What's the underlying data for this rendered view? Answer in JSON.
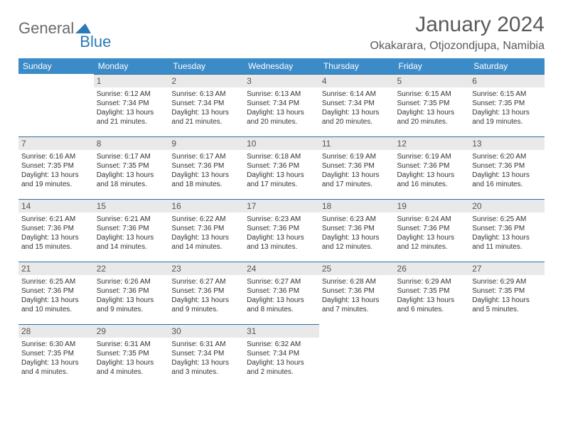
{
  "brand": {
    "part1": "General",
    "part2": "Blue"
  },
  "title": "January 2024",
  "location": "Okakarara, Otjozondjupa, Namibia",
  "colors": {
    "header_bg": "#3b8bc8",
    "header_text": "#ffffff",
    "daynum_bg": "#e9e9e9",
    "daynum_border": "#2a6fa5",
    "body_text": "#333333",
    "brand_grey": "#6b6b6b",
    "brand_blue": "#2a7ab8"
  },
  "weekdays": [
    "Sunday",
    "Monday",
    "Tuesday",
    "Wednesday",
    "Thursday",
    "Friday",
    "Saturday"
  ],
  "weeks": [
    [
      null,
      {
        "n": "1",
        "sr": "Sunrise: 6:12 AM",
        "ss": "Sunset: 7:34 PM",
        "d1": "Daylight: 13 hours",
        "d2": "and 21 minutes."
      },
      {
        "n": "2",
        "sr": "Sunrise: 6:13 AM",
        "ss": "Sunset: 7:34 PM",
        "d1": "Daylight: 13 hours",
        "d2": "and 21 minutes."
      },
      {
        "n": "3",
        "sr": "Sunrise: 6:13 AM",
        "ss": "Sunset: 7:34 PM",
        "d1": "Daylight: 13 hours",
        "d2": "and 20 minutes."
      },
      {
        "n": "4",
        "sr": "Sunrise: 6:14 AM",
        "ss": "Sunset: 7:34 PM",
        "d1": "Daylight: 13 hours",
        "d2": "and 20 minutes."
      },
      {
        "n": "5",
        "sr": "Sunrise: 6:15 AM",
        "ss": "Sunset: 7:35 PM",
        "d1": "Daylight: 13 hours",
        "d2": "and 20 minutes."
      },
      {
        "n": "6",
        "sr": "Sunrise: 6:15 AM",
        "ss": "Sunset: 7:35 PM",
        "d1": "Daylight: 13 hours",
        "d2": "and 19 minutes."
      }
    ],
    [
      {
        "n": "7",
        "sr": "Sunrise: 6:16 AM",
        "ss": "Sunset: 7:35 PM",
        "d1": "Daylight: 13 hours",
        "d2": "and 19 minutes."
      },
      {
        "n": "8",
        "sr": "Sunrise: 6:17 AM",
        "ss": "Sunset: 7:35 PM",
        "d1": "Daylight: 13 hours",
        "d2": "and 18 minutes."
      },
      {
        "n": "9",
        "sr": "Sunrise: 6:17 AM",
        "ss": "Sunset: 7:36 PM",
        "d1": "Daylight: 13 hours",
        "d2": "and 18 minutes."
      },
      {
        "n": "10",
        "sr": "Sunrise: 6:18 AM",
        "ss": "Sunset: 7:36 PM",
        "d1": "Daylight: 13 hours",
        "d2": "and 17 minutes."
      },
      {
        "n": "11",
        "sr": "Sunrise: 6:19 AM",
        "ss": "Sunset: 7:36 PM",
        "d1": "Daylight: 13 hours",
        "d2": "and 17 minutes."
      },
      {
        "n": "12",
        "sr": "Sunrise: 6:19 AM",
        "ss": "Sunset: 7:36 PM",
        "d1": "Daylight: 13 hours",
        "d2": "and 16 minutes."
      },
      {
        "n": "13",
        "sr": "Sunrise: 6:20 AM",
        "ss": "Sunset: 7:36 PM",
        "d1": "Daylight: 13 hours",
        "d2": "and 16 minutes."
      }
    ],
    [
      {
        "n": "14",
        "sr": "Sunrise: 6:21 AM",
        "ss": "Sunset: 7:36 PM",
        "d1": "Daylight: 13 hours",
        "d2": "and 15 minutes."
      },
      {
        "n": "15",
        "sr": "Sunrise: 6:21 AM",
        "ss": "Sunset: 7:36 PM",
        "d1": "Daylight: 13 hours",
        "d2": "and 14 minutes."
      },
      {
        "n": "16",
        "sr": "Sunrise: 6:22 AM",
        "ss": "Sunset: 7:36 PM",
        "d1": "Daylight: 13 hours",
        "d2": "and 14 minutes."
      },
      {
        "n": "17",
        "sr": "Sunrise: 6:23 AM",
        "ss": "Sunset: 7:36 PM",
        "d1": "Daylight: 13 hours",
        "d2": "and 13 minutes."
      },
      {
        "n": "18",
        "sr": "Sunrise: 6:23 AM",
        "ss": "Sunset: 7:36 PM",
        "d1": "Daylight: 13 hours",
        "d2": "and 12 minutes."
      },
      {
        "n": "19",
        "sr": "Sunrise: 6:24 AM",
        "ss": "Sunset: 7:36 PM",
        "d1": "Daylight: 13 hours",
        "d2": "and 12 minutes."
      },
      {
        "n": "20",
        "sr": "Sunrise: 6:25 AM",
        "ss": "Sunset: 7:36 PM",
        "d1": "Daylight: 13 hours",
        "d2": "and 11 minutes."
      }
    ],
    [
      {
        "n": "21",
        "sr": "Sunrise: 6:25 AM",
        "ss": "Sunset: 7:36 PM",
        "d1": "Daylight: 13 hours",
        "d2": "and 10 minutes."
      },
      {
        "n": "22",
        "sr": "Sunrise: 6:26 AM",
        "ss": "Sunset: 7:36 PM",
        "d1": "Daylight: 13 hours",
        "d2": "and 9 minutes."
      },
      {
        "n": "23",
        "sr": "Sunrise: 6:27 AM",
        "ss": "Sunset: 7:36 PM",
        "d1": "Daylight: 13 hours",
        "d2": "and 9 minutes."
      },
      {
        "n": "24",
        "sr": "Sunrise: 6:27 AM",
        "ss": "Sunset: 7:36 PM",
        "d1": "Daylight: 13 hours",
        "d2": "and 8 minutes."
      },
      {
        "n": "25",
        "sr": "Sunrise: 6:28 AM",
        "ss": "Sunset: 7:36 PM",
        "d1": "Daylight: 13 hours",
        "d2": "and 7 minutes."
      },
      {
        "n": "26",
        "sr": "Sunrise: 6:29 AM",
        "ss": "Sunset: 7:35 PM",
        "d1": "Daylight: 13 hours",
        "d2": "and 6 minutes."
      },
      {
        "n": "27",
        "sr": "Sunrise: 6:29 AM",
        "ss": "Sunset: 7:35 PM",
        "d1": "Daylight: 13 hours",
        "d2": "and 5 minutes."
      }
    ],
    [
      {
        "n": "28",
        "sr": "Sunrise: 6:30 AM",
        "ss": "Sunset: 7:35 PM",
        "d1": "Daylight: 13 hours",
        "d2": "and 4 minutes."
      },
      {
        "n": "29",
        "sr": "Sunrise: 6:31 AM",
        "ss": "Sunset: 7:35 PM",
        "d1": "Daylight: 13 hours",
        "d2": "and 4 minutes."
      },
      {
        "n": "30",
        "sr": "Sunrise: 6:31 AM",
        "ss": "Sunset: 7:34 PM",
        "d1": "Daylight: 13 hours",
        "d2": "and 3 minutes."
      },
      {
        "n": "31",
        "sr": "Sunrise: 6:32 AM",
        "ss": "Sunset: 7:34 PM",
        "d1": "Daylight: 13 hours",
        "d2": "and 2 minutes."
      },
      null,
      null,
      null
    ]
  ]
}
